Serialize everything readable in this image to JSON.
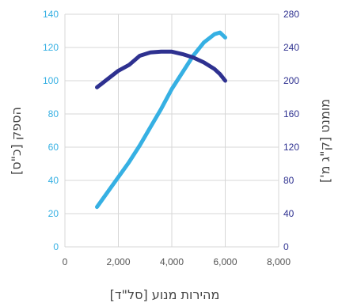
{
  "chart_data": {
    "type": "line",
    "title": "",
    "xlabel": "מהירות מנוע [סל\"ד]",
    "ylabel_left": "הספק [כ\"ס]",
    "ylabel_right": "מומנט [ק\"ג מ']",
    "xlim": [
      0,
      8000
    ],
    "ylim_left": [
      0,
      140
    ],
    "ylim_right": [
      0,
      280
    ],
    "x_ticks": [
      "0",
      "2,000",
      "4,000",
      "6,000",
      "8,000"
    ],
    "y_left_ticks": [
      "0",
      "20",
      "40",
      "60",
      "80",
      "100",
      "120",
      "140"
    ],
    "y_right_ticks": [
      "0",
      "40",
      "80",
      "120",
      "160",
      "200",
      "240",
      "280"
    ],
    "grid": true,
    "series": [
      {
        "axis": "left",
        "color": "#36b0e3",
        "x": [
          1200,
          1600,
          2000,
          2400,
          2800,
          3200,
          3600,
          4000,
          4400,
          4800,
          5200,
          5600,
          5800,
          6000
        ],
        "y": [
          24,
          33,
          42,
          51,
          61,
          72,
          83,
          95,
          105,
          115,
          123,
          128,
          129,
          126
        ]
      },
      {
        "axis": "right",
        "color": "#2e3190",
        "x": [
          1200,
          1600,
          2000,
          2400,
          2800,
          3200,
          3600,
          4000,
          4400,
          4800,
          5200,
          5600,
          5800,
          6000
        ],
        "y": [
          192,
          202,
          212,
          219,
          230,
          234,
          235,
          235,
          232,
          228,
          222,
          214,
          208,
          200
        ]
      }
    ]
  }
}
